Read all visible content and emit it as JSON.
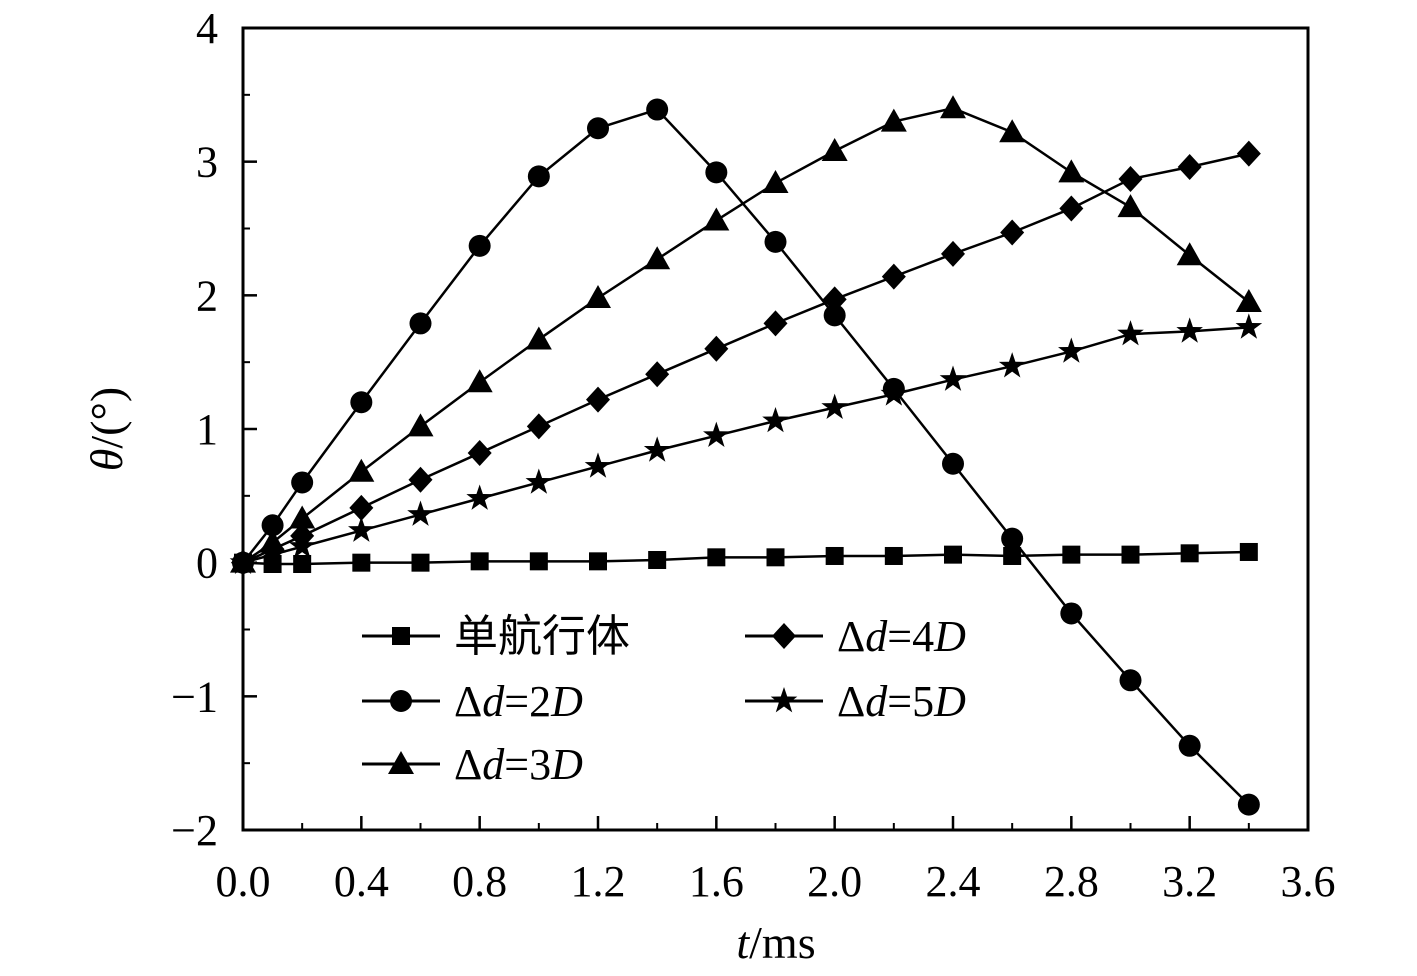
{
  "chart_data": {
    "type": "line",
    "xlabel_var": "t",
    "xlabel_unit": "/ms",
    "ylabel_var": "θ",
    "ylabel_unit": "/(°)",
    "xlim": [
      0.0,
      3.6
    ],
    "ylim": [
      -2,
      4
    ],
    "x_ticks": [
      "0.0",
      "0.4",
      "0.8",
      "1.2",
      "1.6",
      "2.0",
      "2.4",
      "2.8",
      "3.2",
      "3.6"
    ],
    "y_ticks": [
      "−2",
      "−1",
      "0",
      "1",
      "2",
      "3",
      "4"
    ],
    "grid": false,
    "legend_position": "lower-center",
    "x": [
      0.0,
      0.1,
      0.2,
      0.4,
      0.6,
      0.8,
      1.0,
      1.2,
      1.4,
      1.6,
      1.8,
      2.0,
      2.2,
      2.4,
      2.6,
      2.8,
      3.0,
      3.2,
      3.4
    ],
    "series": [
      {
        "name_main": "单航行体",
        "name_var": "",
        "name_tail": "",
        "name_var2": "",
        "marker": "square",
        "values": [
          0.0,
          -0.01,
          -0.01,
          0.0,
          0.0,
          0.01,
          0.01,
          0.01,
          0.02,
          0.04,
          0.04,
          0.05,
          0.05,
          0.06,
          0.05,
          0.06,
          0.06,
          0.07,
          0.08
        ]
      },
      {
        "name_main": "Δ",
        "name_var": "d",
        "name_tail": "=2",
        "name_var2": "D",
        "marker": "circle",
        "values": [
          0.0,
          0.28,
          0.6,
          1.2,
          1.79,
          2.37,
          2.89,
          3.25,
          3.39,
          2.92,
          2.4,
          1.85,
          1.3,
          0.74,
          0.18,
          -0.38,
          -0.88,
          -1.37,
          -1.81
        ]
      },
      {
        "name_main": "Δ",
        "name_var": "d",
        "name_tail": "=3",
        "name_var2": "D",
        "marker": "triangle",
        "values": [
          0.0,
          0.15,
          0.33,
          0.68,
          1.02,
          1.35,
          1.67,
          1.98,
          2.27,
          2.56,
          2.84,
          3.08,
          3.3,
          3.4,
          3.22,
          2.92,
          2.66,
          2.3,
          1.95
        ]
      },
      {
        "name_main": "Δ",
        "name_var": "d",
        "name_tail": "=4",
        "name_var2": "D",
        "marker": "diamond",
        "values": [
          0.0,
          0.1,
          0.2,
          0.41,
          0.62,
          0.82,
          1.02,
          1.22,
          1.41,
          1.6,
          1.79,
          1.97,
          2.14,
          2.31,
          2.47,
          2.65,
          2.87,
          2.96,
          3.06
        ]
      },
      {
        "name_main": "Δ",
        "name_var": "d",
        "name_tail": "=5",
        "name_var2": "D",
        "marker": "star",
        "values": [
          0.0,
          0.06,
          0.12,
          0.24,
          0.36,
          0.48,
          0.6,
          0.72,
          0.84,
          0.95,
          1.06,
          1.16,
          1.26,
          1.37,
          1.47,
          1.58,
          1.71,
          1.73,
          1.76
        ]
      }
    ]
  }
}
